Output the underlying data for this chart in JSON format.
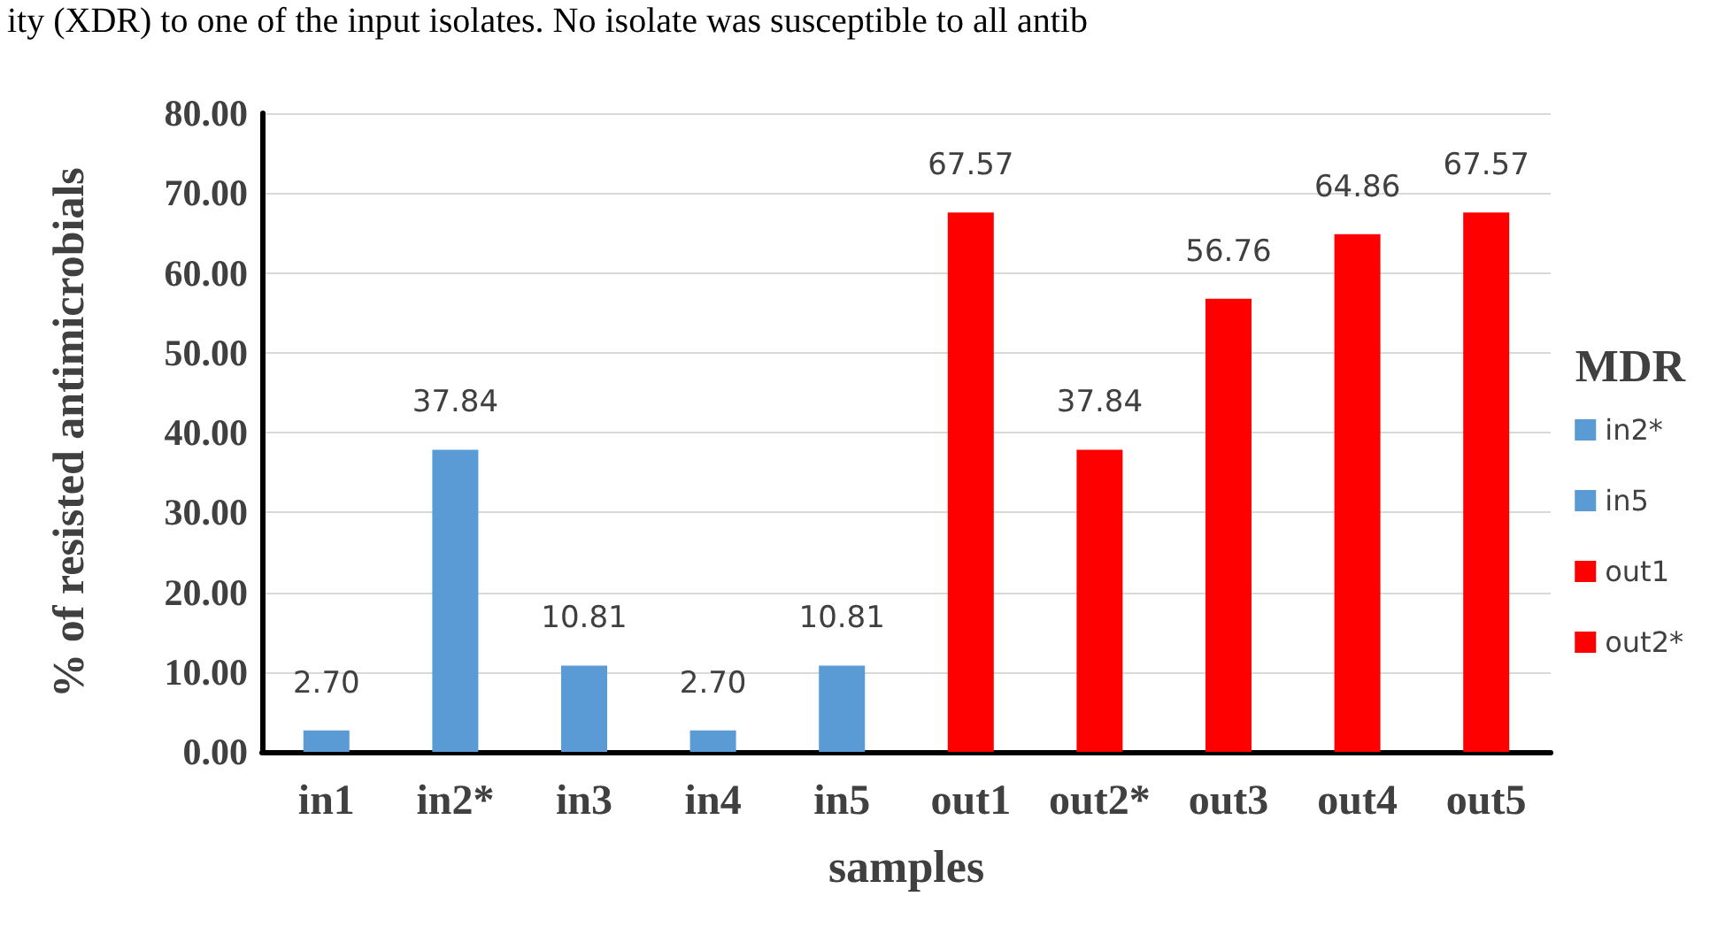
{
  "chart_data": {
    "type": "bar",
    "xlabel": "samples",
    "ylabel": "% of resisted antimicrobials",
    "legend_title": "MDR",
    "annotations": [
      "ity (XDR) to one of the input isolates. No isolate was susceptible to all antib"
    ],
    "categories": [
      "in1",
      "in2*",
      "in3",
      "in4",
      "in5",
      "out1",
      "out2*",
      "out3",
      "out4",
      "out5"
    ],
    "stacked": true,
    "series": [
      {
        "name": "in2*",
        "color": "#5b9bd5",
        "values": [
          2.7,
          37.84,
          10.81,
          2.7,
          10.81,
          null,
          null,
          null,
          null,
          null
        ],
        "value_labels": [
          "2.70",
          "37.84",
          "10.81",
          "2.70",
          "10.81",
          null,
          null,
          null,
          null,
          null
        ]
      },
      {
        "name": "in5",
        "color": "#5b9bd5",
        "values": [
          null,
          null,
          null,
          null,
          null,
          null,
          null,
          null,
          null,
          null
        ]
      },
      {
        "name": "out1",
        "color": "#ff0000",
        "values": [
          null,
          null,
          null,
          null,
          null,
          67.57,
          37.84,
          56.76,
          64.86,
          67.57
        ],
        "value_labels": [
          null,
          null,
          null,
          null,
          null,
          "67.57",
          "37.84",
          "56.76",
          "64.86",
          "67.57"
        ]
      },
      {
        "name": "out2*",
        "color": "#ff0000",
        "values": [
          null,
          null,
          null,
          null,
          null,
          null,
          null,
          null,
          null,
          null
        ]
      }
    ],
    "ylim": [
      0,
      80
    ],
    "yticks": [
      {
        "value": 0,
        "label": "0.00"
      },
      {
        "value": 10,
        "label": "10.00"
      },
      {
        "value": 20,
        "label": "20.00"
      },
      {
        "value": 30,
        "label": "30.00"
      },
      {
        "value": 40,
        "label": "40.00"
      },
      {
        "value": 50,
        "label": "50.00"
      },
      {
        "value": 60,
        "label": "60.00"
      },
      {
        "value": 70,
        "label": "70.00"
      },
      {
        "value": 80,
        "label": "80.00"
      }
    ],
    "grid": "y",
    "legend": "right"
  }
}
